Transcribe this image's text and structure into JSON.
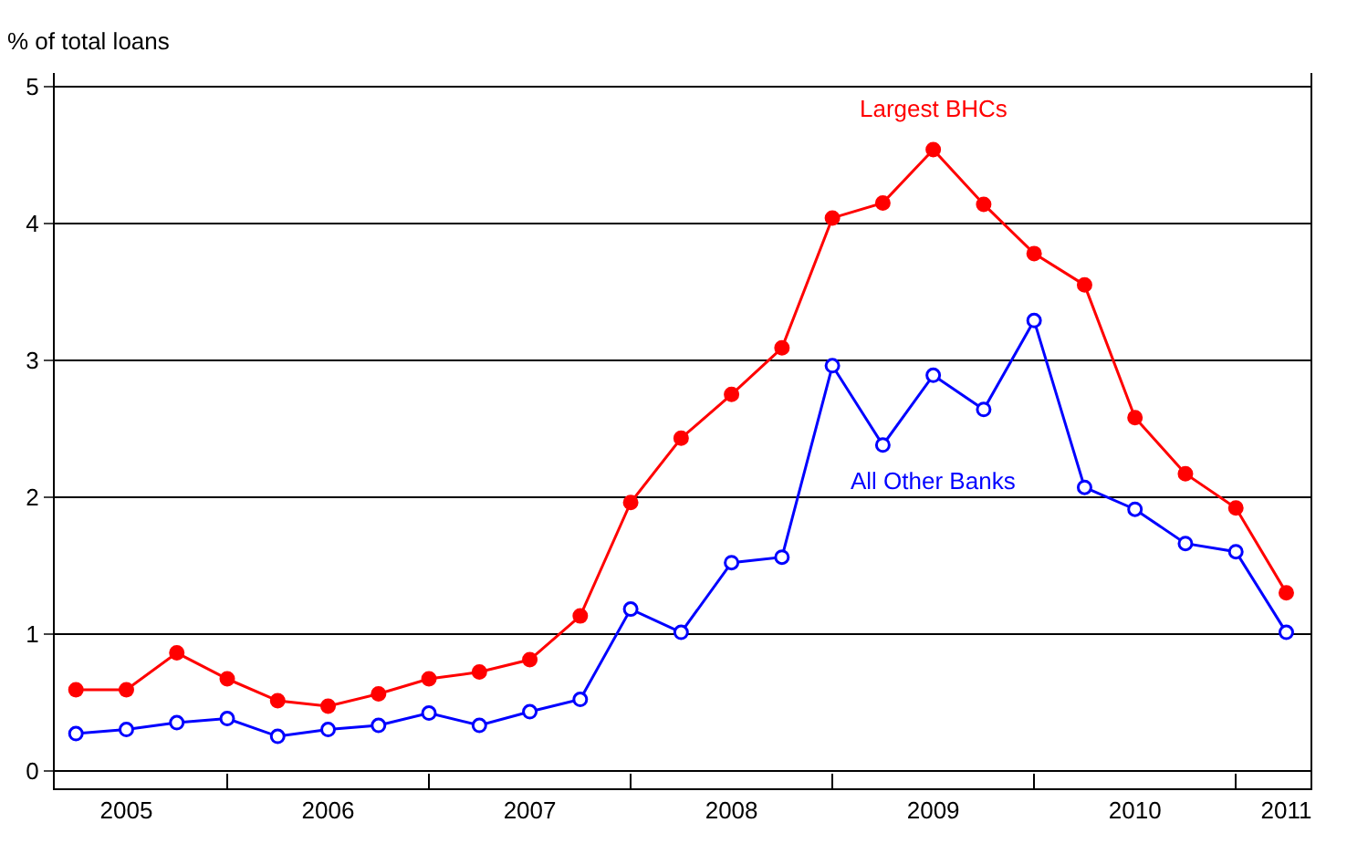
{
  "chart_data": {
    "type": "line",
    "ylabel": "% of total loans",
    "x": [
      2005.25,
      2005.5,
      2005.75,
      2006.0,
      2006.25,
      2006.5,
      2006.75,
      2007.0,
      2007.25,
      2007.5,
      2007.75,
      2008.0,
      2008.25,
      2008.5,
      2008.75,
      2009.0,
      2009.25,
      2009.5,
      2009.75,
      2010.0,
      2010.25,
      2010.5,
      2010.75,
      2011.0,
      2011.25
    ],
    "series": [
      {
        "name": "Largest BHCs",
        "color": "#ff0000",
        "values": [
          0.59,
          0.59,
          0.86,
          0.67,
          0.51,
          0.47,
          0.56,
          0.67,
          0.72,
          0.81,
          1.13,
          1.96,
          2.43,
          2.75,
          3.09,
          4.04,
          4.15,
          4.54,
          4.14,
          3.78,
          3.55,
          2.58,
          2.17,
          1.92,
          1.3
        ]
      },
      {
        "name": "All Other Banks",
        "color": "#0000ff",
        "values": [
          0.27,
          0.3,
          0.35,
          0.38,
          0.25,
          0.3,
          0.33,
          0.42,
          0.33,
          0.43,
          0.52,
          1.18,
          1.01,
          1.52,
          1.56,
          2.96,
          2.38,
          2.89,
          2.64,
          3.29,
          2.07,
          1.91,
          1.66,
          1.6,
          1.01
        ]
      }
    ],
    "marker": "circle",
    "xlim": [
      2005.145,
      2011.37
    ],
    "xticks": [
      {
        "value": 2005.5,
        "label": "2005"
      },
      {
        "value": 2006.5,
        "label": "2006"
      },
      {
        "value": 2007.5,
        "label": "2007"
      },
      {
        "value": 2008.5,
        "label": "2008"
      },
      {
        "value": 2009.5,
        "label": "2009"
      },
      {
        "value": 2010.5,
        "label": "2010"
      },
      {
        "value": 2011.25,
        "label": "2011"
      },
      {
        "value": 2006,
        "label": null
      },
      {
        "value": 2007,
        "label": null
      },
      {
        "value": 2008,
        "label": null
      },
      {
        "value": 2009,
        "label": null
      },
      {
        "value": 2010,
        "label": null
      },
      {
        "value": 2011,
        "label": null
      }
    ],
    "ylim": [
      -0.13,
      5.1
    ],
    "yticks": [
      0,
      1,
      2,
      3,
      4,
      5
    ],
    "grid": "y",
    "legend": false,
    "line_style": "solid"
  }
}
